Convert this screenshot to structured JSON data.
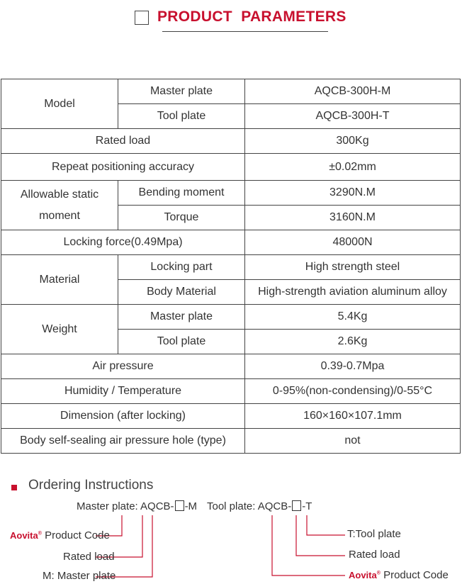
{
  "header": {
    "title": "PRODUCT  PARAMETERS"
  },
  "table": {
    "model": "Model",
    "master_plate": "Master plate",
    "master_val": "AQCB-300H-M",
    "tool_plate": "Tool plate",
    "tool_val": "AQCB-300H-T",
    "rated_load": "Rated load",
    "rated_load_val": "300Kg",
    "repeat": "Repeat positioning accuracy",
    "repeat_val": "±0.02mm",
    "static": "Allowable static moment",
    "bending": "Bending moment",
    "bending_val": "3290N.M",
    "torque": "Torque",
    "torque_val": "3160N.M",
    "locking": "Locking force(0.49Mpa)",
    "locking_val": "48000N",
    "material": "Material",
    "locking_part": "Locking part",
    "locking_part_val": "High strength steel",
    "body_material": "Body Material",
    "body_material_val": "High-strength aviation aluminum alloy",
    "weight": "Weight",
    "w_master": "Master plate",
    "w_master_val": "5.4Kg",
    "w_tool": "Tool plate",
    "w_tool_val": "2.6Kg",
    "air": "Air pressure",
    "air_val": "0.39-0.7Mpa",
    "humidity": "Humidity / Temperature",
    "humidity_val": "0-95%(non-condensing)/0-55°C",
    "dimension": "Dimension (after locking)",
    "dimension_val": "160×160×107.1mm",
    "hole": "Body self-sealing air pressure hole (type)",
    "hole_val": "not"
  },
  "ordering": {
    "title": "Ordering Instructions",
    "master_prefix": "Master plate: AQCB-",
    "master_suffix": "-M",
    "tool_prefix": "Tool plate: AQCB-",
    "tool_suffix": "-T",
    "brand": "Aovita",
    "reg": "®",
    "product_code": "Product Code",
    "rated_load": "Rated load",
    "m_label": "M: Master plate",
    "t_label": "T:Tool plate"
  },
  "colors": {
    "accent": "#c8102e"
  }
}
